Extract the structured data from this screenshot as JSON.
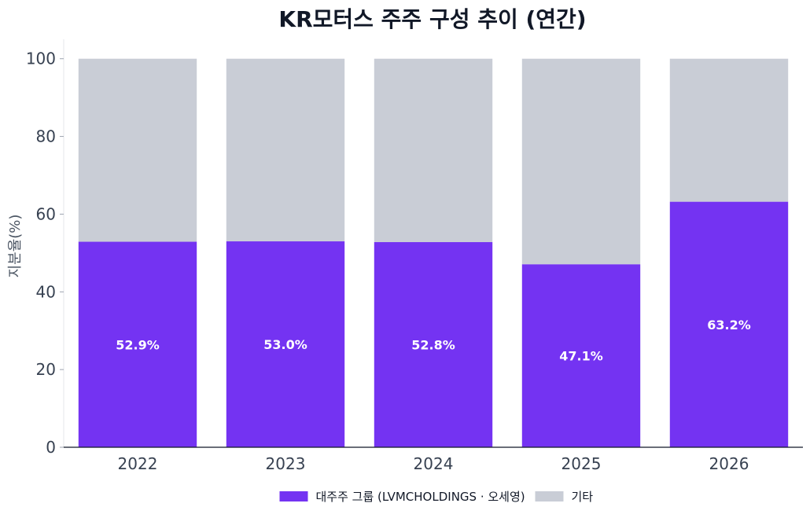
{
  "chart_data": {
    "type": "bar",
    "stacked": true,
    "title": "KR모터스 주주 구성 추이 (연간)",
    "xlabel": "",
    "ylabel": "지분율(%)",
    "ylim": [
      0,
      105
    ],
    "yticks": [
      0,
      20,
      40,
      60,
      80,
      100
    ],
    "categories": [
      "2022",
      "2023",
      "2024",
      "2025",
      "2026"
    ],
    "series": [
      {
        "name": "대주주 그룹 (LVMCHOLDINGS · 오세영)",
        "values": [
          52.9,
          53.0,
          52.8,
          47.1,
          63.2
        ],
        "color": "#7433f2"
      },
      {
        "name": "기타",
        "values": [
          47.1,
          47.0,
          47.2,
          52.9,
          36.8
        ],
        "color": "#c9cdd6"
      }
    ],
    "data_labels": [
      "52.9%",
      "53.0%",
      "52.8%",
      "47.1%",
      "63.2%"
    ],
    "grid": false,
    "legend": "bottom-center"
  }
}
